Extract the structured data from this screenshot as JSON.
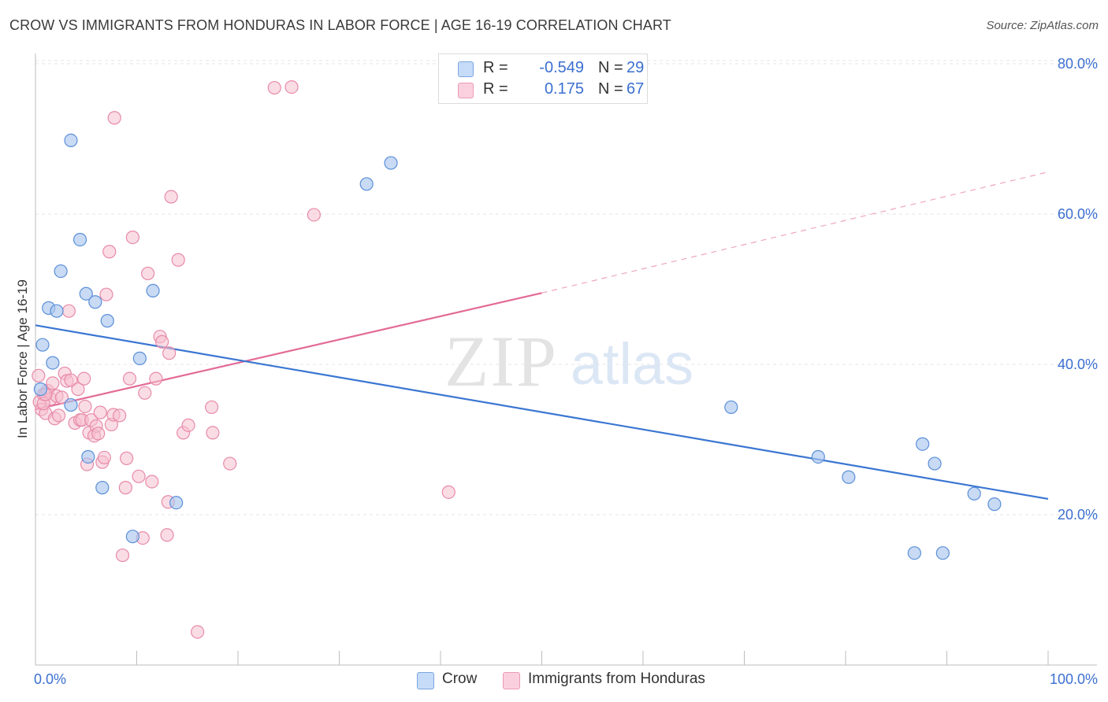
{
  "title": "CROW VS IMMIGRANTS FROM HONDURAS IN LABOR FORCE | AGE 16-19 CORRELATION CHART",
  "source": "Source: ZipAtlas.com",
  "watermark": {
    "zip": "ZIP",
    "atlas": "atlas"
  },
  "colors": {
    "crow_fill": "#aac6ee",
    "crow_stroke": "#5b8fd9",
    "crow_line": "#3a76d2",
    "hond_fill": "#f6bfd0",
    "hond_stroke": "#e78aa9",
    "hond_line": "#e36a96",
    "axis_text": "#3b6fd0",
    "grid": "#e4e4e4"
  },
  "legend": [
    {
      "r_label": "R =",
      "r_value": "-0.549",
      "n_label": "N =",
      "n_value": "29"
    },
    {
      "r_label": "R =",
      "r_value": "0.175",
      "n_label": "N =",
      "n_value": "67"
    }
  ],
  "bottom_legend": [
    "Crow",
    "Immigrants from Honduras"
  ],
  "chart_data": {
    "type": "scatter",
    "xlabel": "",
    "ylabel": "In Labor Force | Age 16-19",
    "xlim": [
      0,
      100
    ],
    "ylim": [
      0,
      80
    ],
    "x_tick_labels": [
      {
        "value": 0,
        "label": "0.0%"
      },
      {
        "value": 100,
        "label": "100.0%"
      }
    ],
    "y_tick_labels": [
      {
        "value": 20,
        "label": "20.0%"
      },
      {
        "value": 40,
        "label": "40.0%"
      },
      {
        "value": 60,
        "label": "60.0%"
      },
      {
        "value": 80,
        "label": "80.0%"
      }
    ],
    "grid": true,
    "series": [
      {
        "name": "Crow",
        "points": [
          [
            0.5,
            36.7
          ],
          [
            0.7,
            42.6
          ],
          [
            1.3,
            47.5
          ],
          [
            1.7,
            40.2
          ],
          [
            2.1,
            47.1
          ],
          [
            2.5,
            52.4
          ],
          [
            3.5,
            69.8
          ],
          [
            3.5,
            34.6
          ],
          [
            4.4,
            56.6
          ],
          [
            5.0,
            49.4
          ],
          [
            5.2,
            27.7
          ],
          [
            5.9,
            48.3
          ],
          [
            6.6,
            23.6
          ],
          [
            7.1,
            45.8
          ],
          [
            9.6,
            17.1
          ],
          [
            10.3,
            40.8
          ],
          [
            11.6,
            49.8
          ],
          [
            13.9,
            21.6
          ],
          [
            32.7,
            64.0
          ],
          [
            35.1,
            66.8
          ],
          [
            68.7,
            34.3
          ],
          [
            77.3,
            27.7
          ],
          [
            80.3,
            25.0
          ],
          [
            86.8,
            14.9
          ],
          [
            87.6,
            29.4
          ],
          [
            88.8,
            26.8
          ],
          [
            89.6,
            14.9
          ],
          [
            92.7,
            22.8
          ],
          [
            94.7,
            21.4
          ]
        ],
        "trend": {
          "x1": 0,
          "y1": 45.2,
          "x2": 100,
          "y2": 22.1
        }
      },
      {
        "name": "Immigrants from Honduras",
        "points": [
          [
            0.3,
            38.5
          ],
          [
            0.4,
            35.0
          ],
          [
            0.6,
            34.0
          ],
          [
            0.8,
            36.0
          ],
          [
            1.0,
            33.5
          ],
          [
            1.2,
            36.5
          ],
          [
            1.5,
            35.4
          ],
          [
            1.7,
            37.5
          ],
          [
            1.9,
            32.8
          ],
          [
            2.1,
            35.8
          ],
          [
            2.3,
            33.2
          ],
          [
            2.6,
            35.6
          ],
          [
            2.9,
            38.8
          ],
          [
            3.1,
            37.8
          ],
          [
            3.3,
            47.1
          ],
          [
            3.5,
            37.9
          ],
          [
            3.9,
            32.2
          ],
          [
            4.2,
            36.7
          ],
          [
            4.4,
            32.6
          ],
          [
            4.6,
            32.6
          ],
          [
            4.8,
            38.1
          ],
          [
            4.9,
            34.4
          ],
          [
            5.1,
            26.7
          ],
          [
            5.3,
            30.9
          ],
          [
            5.5,
            32.6
          ],
          [
            5.8,
            30.5
          ],
          [
            6.0,
            31.8
          ],
          [
            6.2,
            30.8
          ],
          [
            6.4,
            33.6
          ],
          [
            6.6,
            27.0
          ],
          [
            6.8,
            27.6
          ],
          [
            7.0,
            49.3
          ],
          [
            7.3,
            55.0
          ],
          [
            7.5,
            32.0
          ],
          [
            7.7,
            33.3
          ],
          [
            7.8,
            72.8
          ],
          [
            8.3,
            33.2
          ],
          [
            8.6,
            14.6
          ],
          [
            8.9,
            23.6
          ],
          [
            9.0,
            27.5
          ],
          [
            9.3,
            38.1
          ],
          [
            9.6,
            56.9
          ],
          [
            10.2,
            25.1
          ],
          [
            10.6,
            16.9
          ],
          [
            10.8,
            36.2
          ],
          [
            11.1,
            52.1
          ],
          [
            11.5,
            24.4
          ],
          [
            11.9,
            38.1
          ],
          [
            12.3,
            43.7
          ],
          [
            12.5,
            43.0
          ],
          [
            13.2,
            41.5
          ],
          [
            13.1,
            21.7
          ],
          [
            13.0,
            17.3
          ],
          [
            13.4,
            62.3
          ],
          [
            14.1,
            53.9
          ],
          [
            14.6,
            30.9
          ],
          [
            15.1,
            31.9
          ],
          [
            16.0,
            4.4
          ],
          [
            17.4,
            34.3
          ],
          [
            17.5,
            30.9
          ],
          [
            19.2,
            26.8
          ],
          [
            23.6,
            76.8
          ],
          [
            25.3,
            76.9
          ],
          [
            27.5,
            59.9
          ],
          [
            40.8,
            23.0
          ],
          [
            0.8,
            34.8
          ],
          [
            1.0,
            36.0
          ]
        ],
        "trend": {
          "x1": 0,
          "y1": 34.0,
          "x2": 50,
          "y2": 49.5,
          "dash_to_x": 100,
          "dash_to_y": 65.6
        }
      }
    ]
  }
}
